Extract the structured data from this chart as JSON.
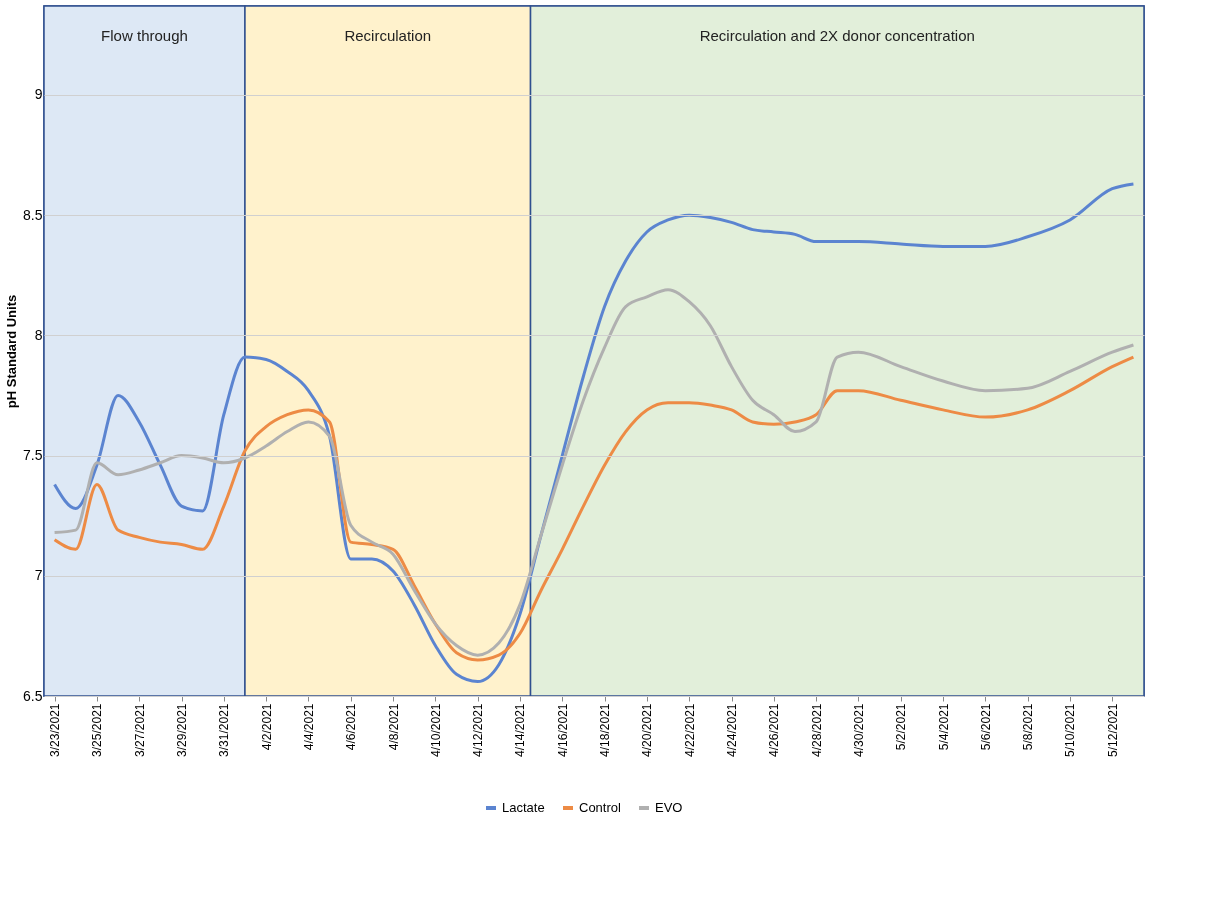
{
  "chart_data": {
    "type": "line",
    "ylabel": "pH Standard Units",
    "x": [
      "2021-03-23",
      "2021-03-24",
      "2021-03-25",
      "2021-03-26",
      "2021-03-27",
      "2021-03-28",
      "2021-03-29",
      "2021-03-30",
      "2021-03-31",
      "2021-04-01",
      "2021-04-02",
      "2021-04-03",
      "2021-04-04",
      "2021-04-05",
      "2021-04-06",
      "2021-04-07",
      "2021-04-08",
      "2021-04-09",
      "2021-04-10",
      "2021-04-11",
      "2021-04-12",
      "2021-04-13",
      "2021-04-14",
      "2021-04-15",
      "2021-04-16",
      "2021-04-17",
      "2021-04-18",
      "2021-04-19",
      "2021-04-20",
      "2021-04-21",
      "2021-04-22",
      "2021-04-23",
      "2021-04-24",
      "2021-04-25",
      "2021-04-26",
      "2021-04-27",
      "2021-04-28",
      "2021-04-29",
      "2021-04-30",
      "2021-05-02",
      "2021-05-04",
      "2021-05-06",
      "2021-05-08",
      "2021-05-10",
      "2021-05-12",
      "2021-05-13"
    ],
    "series": [
      {
        "name": "Lactate",
        "color": "#5b84d0",
        "values": [
          7.38,
          7.28,
          7.46,
          7.75,
          7.64,
          7.46,
          7.29,
          7.27,
          7.67,
          7.91,
          7.9,
          7.85,
          7.77,
          7.58,
          7.07,
          7.07,
          7.02,
          6.88,
          6.71,
          6.59,
          6.56,
          6.63,
          6.84,
          7.17,
          7.5,
          7.83,
          8.12,
          8.31,
          8.43,
          8.48,
          8.5,
          8.49,
          8.47,
          8.44,
          8.43,
          8.42,
          8.39,
          8.39,
          8.39,
          8.38,
          8.37,
          8.37,
          8.41,
          8.48,
          8.61,
          8.63
        ]
      },
      {
        "name": "Control",
        "color": "#ed8b45",
        "values": [
          7.15,
          7.11,
          7.38,
          7.19,
          7.16,
          7.14,
          7.13,
          7.11,
          7.29,
          7.52,
          7.62,
          7.67,
          7.69,
          7.64,
          7.14,
          7.13,
          7.11,
          6.96,
          6.8,
          6.68,
          6.65,
          6.67,
          6.76,
          6.94,
          7.11,
          7.29,
          7.46,
          7.6,
          7.69,
          7.72,
          7.72,
          7.71,
          7.69,
          7.64,
          7.63,
          7.64,
          7.67,
          7.77,
          7.77,
          7.73,
          7.69,
          7.66,
          7.69,
          7.77,
          7.87,
          7.91
        ]
      },
      {
        "name": "EVO",
        "color": "#b0b0b0",
        "values": [
          7.18,
          7.19,
          7.47,
          7.42,
          7.44,
          7.47,
          7.5,
          7.49,
          7.47,
          7.49,
          7.54,
          7.6,
          7.64,
          7.58,
          7.21,
          7.14,
          7.09,
          6.94,
          6.8,
          6.71,
          6.67,
          6.72,
          6.88,
          7.17,
          7.46,
          7.73,
          7.95,
          8.12,
          8.16,
          8.19,
          8.14,
          8.04,
          7.87,
          7.73,
          7.67,
          7.6,
          7.64,
          7.91,
          7.93,
          7.87,
          7.81,
          7.77,
          7.78,
          7.85,
          7.93,
          7.96
        ]
      }
    ],
    "xlim": [
      "2021-03-22T12:00",
      "2021-05-13T12:00"
    ],
    "xticks": [
      {
        "value": "2021-03-23",
        "label": "3/23/2021"
      },
      {
        "value": "2021-03-25",
        "label": "3/25/2021"
      },
      {
        "value": "2021-03-27",
        "label": "3/27/2021"
      },
      {
        "value": "2021-03-29",
        "label": "3/29/2021"
      },
      {
        "value": "2021-03-31",
        "label": "3/31/2021"
      },
      {
        "value": "2021-04-02",
        "label": "4/2/2021"
      },
      {
        "value": "2021-04-04",
        "label": "4/4/2021"
      },
      {
        "value": "2021-04-06",
        "label": "4/6/2021"
      },
      {
        "value": "2021-04-08",
        "label": "4/8/2021"
      },
      {
        "value": "2021-04-10",
        "label": "4/10/2021"
      },
      {
        "value": "2021-04-12",
        "label": "4/12/2021"
      },
      {
        "value": "2021-04-14",
        "label": "4/14/2021"
      },
      {
        "value": "2021-04-16",
        "label": "4/16/2021"
      },
      {
        "value": "2021-04-18",
        "label": "4/18/2021"
      },
      {
        "value": "2021-04-20",
        "label": "4/20/2021"
      },
      {
        "value": "2021-04-22",
        "label": "4/22/2021"
      },
      {
        "value": "2021-04-24",
        "label": "4/24/2021"
      },
      {
        "value": "2021-04-26",
        "label": "4/26/2021"
      },
      {
        "value": "2021-04-28",
        "label": "4/28/2021"
      },
      {
        "value": "2021-04-30",
        "label": "4/30/2021"
      },
      {
        "value": "2021-05-02",
        "label": "5/2/2021"
      },
      {
        "value": "2021-05-04",
        "label": "5/4/2021"
      },
      {
        "value": "2021-05-06",
        "label": "5/6/2021"
      },
      {
        "value": "2021-05-08",
        "label": "5/8/2021"
      },
      {
        "value": "2021-05-10",
        "label": "5/10/2021"
      },
      {
        "value": "2021-05-12",
        "label": "5/12/2021"
      }
    ],
    "ylim": [
      6.5,
      9.37
    ],
    "yticks": [
      6.5,
      7,
      7.5,
      8,
      8.5,
      9
    ],
    "bands": [
      {
        "axis": "x",
        "from": "2021-03-22T12:00",
        "to": "2021-04-01",
        "label": "Flow through",
        "color": "#dde8f5"
      },
      {
        "axis": "x",
        "from": "2021-04-01",
        "to": "2021-04-14T12:00",
        "label": "Recirculation",
        "color": "#fff2cc"
      },
      {
        "axis": "x",
        "from": "2021-04-14T12:00",
        "to": "2021-05-13T12:00",
        "label": "Recirculation and 2X donor concentration",
        "color": "#e2efda"
      }
    ],
    "grid": "y",
    "legend": "bottom",
    "line_style": "solid",
    "marker": "none"
  }
}
